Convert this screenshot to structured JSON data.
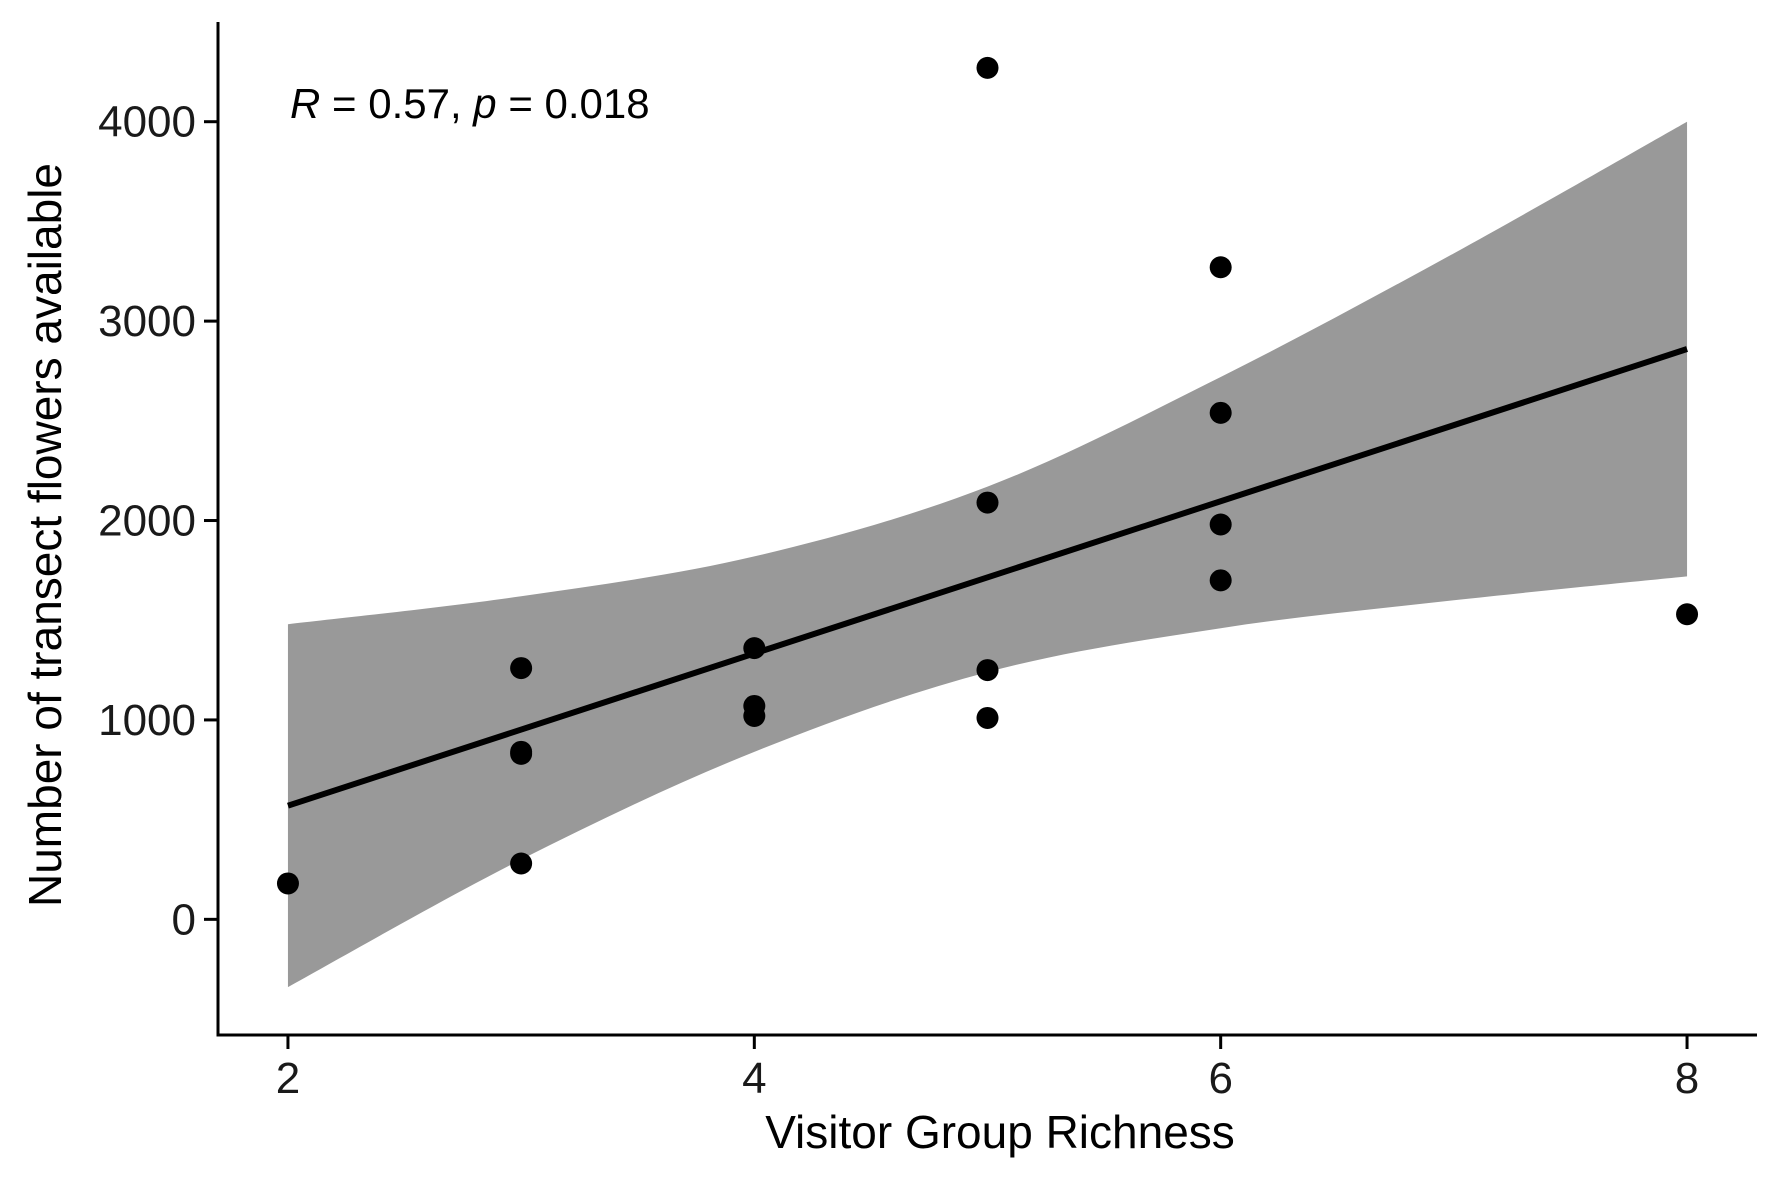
{
  "chart_data": {
    "type": "scatter",
    "title": "",
    "xlabel": "Visitor Group Richness",
    "ylabel": "Number of transect flowers available",
    "xlim": [
      1.7,
      8.3
    ],
    "ylim": [
      -580,
      4500
    ],
    "x_ticks": [
      2,
      4,
      6,
      8
    ],
    "y_ticks": [
      0,
      1000,
      2000,
      3000,
      4000
    ],
    "x_tick_labels": [
      "2",
      "4",
      "6",
      "8"
    ],
    "y_tick_labels": [
      "0",
      "1000",
      "2000",
      "3000",
      "4000"
    ],
    "grid": false,
    "annotation": {
      "r_label": "R",
      "r_text": " = 0.57, ",
      "p_label": "p",
      "p_text": " = 0.018"
    },
    "points": [
      {
        "x": 2,
        "y": 180
      },
      {
        "x": 3,
        "y": 1260
      },
      {
        "x": 3,
        "y": 840
      },
      {
        "x": 3,
        "y": 830
      },
      {
        "x": 3,
        "y": 280
      },
      {
        "x": 4,
        "y": 1360
      },
      {
        "x": 4,
        "y": 1070
      },
      {
        "x": 4,
        "y": 1020
      },
      {
        "x": 5,
        "y": 4270
      },
      {
        "x": 5,
        "y": 2090
      },
      {
        "x": 5,
        "y": 1250
      },
      {
        "x": 5,
        "y": 1010
      },
      {
        "x": 6,
        "y": 3270
      },
      {
        "x": 6,
        "y": 2540
      },
      {
        "x": 6,
        "y": 1980
      },
      {
        "x": 6,
        "y": 1700
      },
      {
        "x": 8,
        "y": 1530
      }
    ],
    "regression_line": {
      "x": [
        2,
        8
      ],
      "y": [
        570,
        2860
      ]
    },
    "confidence_band": {
      "x": [
        2,
        3,
        4,
        5,
        6,
        7,
        8
      ],
      "lower": [
        -340,
        300,
        840,
        1240,
        1460,
        1600,
        1720
      ],
      "upper": [
        1480,
        1620,
        1820,
        2170,
        2720,
        3340,
        4000
      ]
    },
    "colors": {
      "points": "#000000",
      "line": "#000000",
      "band": "#999999",
      "axis": "#000000"
    }
  }
}
